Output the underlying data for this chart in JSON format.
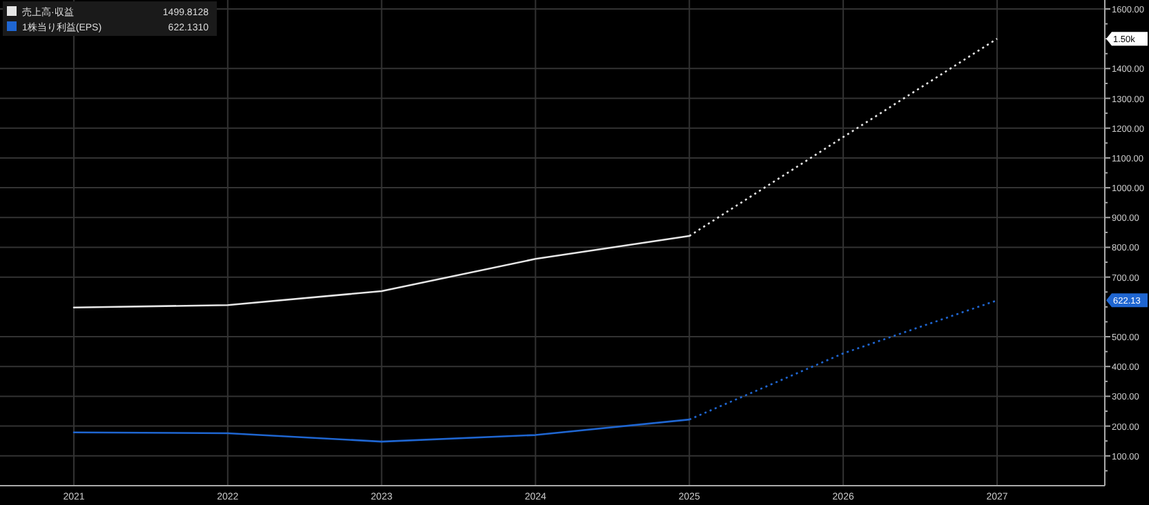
{
  "chart_data": {
    "type": "line",
    "x": [
      2021,
      2022,
      2023,
      2024,
      2025,
      2026,
      2027
    ],
    "series": [
      {
        "name": "売上高·収益",
        "color": "#e6e6e6",
        "values": [
          598,
          606,
          653,
          761,
          838,
          null,
          null
        ],
        "line_style": "solid"
      },
      {
        "color": "#e6e6e6",
        "values": [
          null,
          null,
          null,
          null,
          838,
          1170,
          1500
        ],
        "line_style": "dotted"
      },
      {
        "name": "1株当り利益(EPS)",
        "color": "#1f66d1",
        "values": [
          179,
          176,
          148,
          170,
          222,
          null,
          null
        ],
        "line_style": "solid"
      },
      {
        "color": "#1f66d1",
        "values": [
          null,
          null,
          null,
          null,
          222,
          444,
          622
        ],
        "line_style": "dotted"
      }
    ],
    "annotations": [
      "1.50k",
      "622.13",
      "1499.8128",
      "622.1310"
    ],
    "xlim": [
      2020.52,
      2027.7
    ],
    "xticks": [
      2021,
      2022,
      2023,
      2024,
      2025,
      2026,
      2027
    ],
    "ylim": [
      0,
      1630
    ],
    "yticks": [
      {
        "value": 50,
        "label": null
      },
      {
        "value": 100,
        "label": "100.00"
      },
      {
        "value": 150,
        "label": null
      },
      {
        "value": 200,
        "label": "200.00"
      },
      {
        "value": 250,
        "label": null
      },
      {
        "value": 300,
        "label": "300.00"
      },
      {
        "value": 350,
        "label": null
      },
      {
        "value": 400,
        "label": "400.00"
      },
      {
        "value": 450,
        "label": null
      },
      {
        "value": 500,
        "label": "500.00"
      },
      {
        "value": 550,
        "label": null
      },
      {
        "value": 600,
        "label": null
      },
      {
        "value": 650,
        "label": null
      },
      {
        "value": 700,
        "label": "700.00"
      },
      {
        "value": 750,
        "label": null
      },
      {
        "value": 800,
        "label": "800.00"
      },
      {
        "value": 850,
        "label": null
      },
      {
        "value": 900,
        "label": "900.00"
      },
      {
        "value": 950,
        "label": null
      },
      {
        "value": 1000,
        "label": "1000.00"
      },
      {
        "value": 1050,
        "label": null
      },
      {
        "value": 1100,
        "label": "1100.00"
      },
      {
        "value": 1150,
        "label": null
      },
      {
        "value": 1200,
        "label": "1200.00"
      },
      {
        "value": 1250,
        "label": null
      },
      {
        "value": 1300,
        "label": "1300.00"
      },
      {
        "value": 1350,
        "label": null
      },
      {
        "value": 1400,
        "label": "1400.00"
      },
      {
        "value": 1450,
        "label": null
      },
      {
        "value": 1500,
        "label": null
      },
      {
        "value": 1550,
        "label": null
      },
      {
        "value": 1600,
        "label": "1600.00"
      }
    ],
    "grid": true,
    "legend": "top left",
    "marker": "none"
  }
}
